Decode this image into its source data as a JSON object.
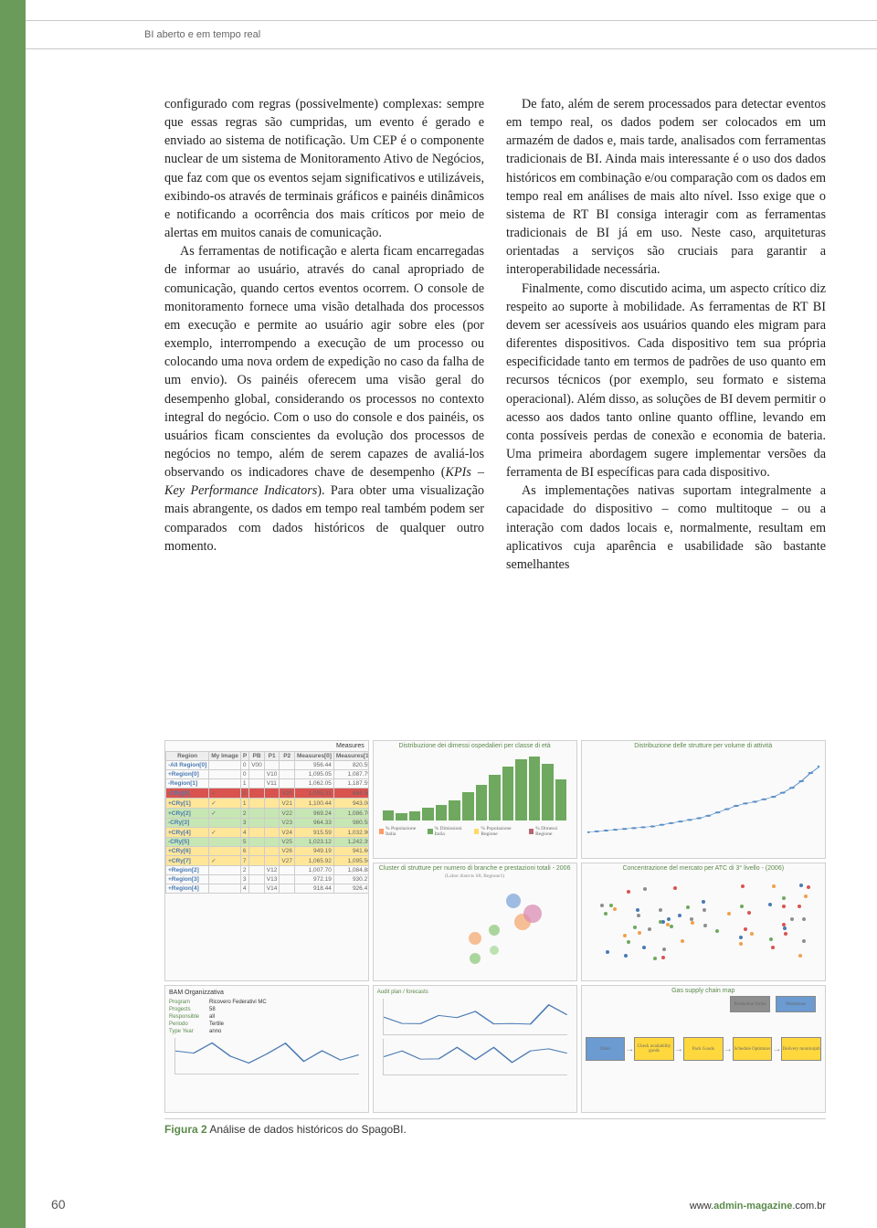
{
  "header": {
    "title": "BI aberto e em tempo real"
  },
  "page_number": "60",
  "footer_url_prefix": "www.",
  "footer_url_bold": "admin-magazine",
  "footer_url_suffix": ".com.br",
  "col1": {
    "p1": "configurado com regras (possivelmente) complexas: sempre que essas regras são cumpridas, um evento é gerado e enviado ao sistema de notificação. Um CEP é o componente nuclear de um sistema de Monitoramento Ativo de Negócios, que faz com que os eventos sejam significativos e utilizáveis, exibindo-os através de terminais gráficos e painéis dinâmicos e notificando a ocorrência dos mais críticos por meio de alertas em muitos canais de comunicação.",
    "p2a": "As ferramentas de notificação e alerta ficam encarregadas de informar ao usuário, através do canal apropriado de comunicação, quando certos eventos ocorrem. O console de monitoramento fornece uma visão detalhada dos processos em execução e permite ao usuário agir sobre eles (por exemplo, interrompendo a execução de um processo ou colocando uma nova ordem de expedição no caso da falha de um envio). Os painéis oferecem uma visão geral do desempenho global, considerando os processos no contexto integral do negócio. Com o uso do console e dos painéis, os usuários ficam conscientes da evolução dos processos de negócios no tempo, além de serem capazes de avaliá-los observando os indicadores chave de desempenho (",
    "p2_italic": "KPIs – Key Performance Indicators",
    "p2b": "). Para obter uma visualização mais abrangente, os dados em tempo real também podem ser comparados com dados históricos de qualquer outro momento."
  },
  "col2": {
    "p1": "De fato, além de serem processados para detectar eventos em tempo real, os dados podem ser colocados em um armazém de dados e, mais tarde, analisados com ferramentas tradicionais de BI. Ainda mais interessante é o uso dos dados históricos em combinação e/ou comparação com os dados em tempo real em análises de mais alto nível. Isso exige que o sistema de RT BI consiga interagir com as ferramentas tradicionais de BI já em uso. Neste caso, arquiteturas orientadas a serviços são cruciais para garantir a interoperabilidade necessária.",
    "p2": "Finalmente, como discutido acima, um aspecto crítico diz respeito ao suporte à mobilidade. As ferramentas de RT BI devem ser acessíveis aos usuários quando eles migram para diferentes dispositivos. Cada dispositivo tem sua própria especificidade tanto em termos de padrões de uso quanto em recursos técnicos (por exemplo, seu formato e sistema operacional). Além disso, as soluções de BI devem permitir o acesso aos dados tanto online quanto offline, levando em conta possíveis perdas de conexão e economia de bateria. Uma primeira abordagem sugere implementar versões da ferramenta de BI específicas para cada dispositivo.",
    "p3": "As implementações nativas suportam integralmente a capacidade do dispositivo – como multitoque – ou a interação com dados locais e, normalmente, resultam em aplicativos cuja aparência e usabilidade são bastante semelhantes"
  },
  "figure": {
    "label": "Figura 2",
    "caption": "Análise de dados históricos do SpagoBI.",
    "panel1": {
      "title": "Distribuzione dei dimessi ospedalieri per classe di età",
      "bars": [
        2.0,
        1.5,
        1.8,
        2.5,
        3.0,
        4.0,
        5.5,
        7.0,
        9.0,
        10.5,
        12.0,
        12.5,
        11.0,
        8.0
      ],
      "bar_color": "#6fa85f",
      "ylim": [
        0,
        12.5
      ],
      "legend": [
        "% Popolazione Italia",
        "% Dimissioni Italia",
        "% Popolazione Regione",
        "% Dimessi Regione"
      ],
      "legend_colors": [
        "#ff9c66",
        "#6fa85f",
        "#ffd966",
        "#b56576"
      ]
    },
    "panel2": {
      "title": "Distribuzione delle strutture per volume di attività",
      "points_y": [
        8,
        9,
        10,
        11,
        12,
        13,
        14,
        15,
        17,
        19,
        21,
        23,
        25,
        28,
        32,
        36,
        40,
        43,
        45,
        48,
        51,
        56,
        62,
        70,
        80,
        88
      ],
      "color": "#5b8fc9"
    },
    "panel3": {
      "title": "Cluster di strutture per numero di branche e prestazioni totali - 2006",
      "subtitle": "(Labor distrcts S8, Regione1)",
      "bubbles": [
        {
          "x": 5,
          "y": 9000,
          "r": 6,
          "c": "#8fc97f"
        },
        {
          "x": 6,
          "y": 10000,
          "r": 5,
          "c": "#a8d99a"
        },
        {
          "x": 5,
          "y": 11500,
          "r": 7,
          "c": "#f4a971"
        },
        {
          "x": 6,
          "y": 12500,
          "r": 6,
          "c": "#8fc97f"
        },
        {
          "x": 7.5,
          "y": 13500,
          "r": 9,
          "c": "#f4a971"
        },
        {
          "x": 8,
          "y": 14500,
          "r": 10,
          "c": "#d98cb3"
        },
        {
          "x": 7,
          "y": 16000,
          "r": 8,
          "c": "#7fa6d9"
        }
      ],
      "xlim": [
        0,
        10
      ],
      "ylim": [
        8000,
        18000
      ]
    },
    "panel4": {
      "title": "Concentrazione del mercato per ATC di 3° livello - (2006)",
      "scatter_colors": [
        "#6fa85f",
        "#f0a04b",
        "#4a7ab3",
        "#d9534f",
        "#8e8e8e"
      ]
    },
    "table": {
      "header_label": "Measures",
      "columns": [
        "Region",
        "My Image",
        "P",
        "PB",
        "P1",
        "P2",
        "Measures[0]",
        "Measures[1]",
        "Measures[2]"
      ],
      "rows": [
        {
          "cells": [
            "-All Region[0]",
            "",
            "0",
            "V00",
            "",
            "",
            "956.44",
            "820.55",
            "903.55"
          ],
          "bg": null
        },
        {
          "cells": [
            "+Region[0]",
            "",
            "0",
            "",
            "V10",
            "",
            "1,095.05",
            "1,087.79",
            "959.23"
          ],
          "bg": null
        },
        {
          "cells": [
            "-Region[1]",
            "",
            "1",
            "",
            "V11",
            "",
            "1,062.05",
            "1,187.59",
            "969.37"
          ],
          "bg": null
        },
        {
          "cells": [
            "-CRy[0]",
            "✓",
            "0",
            "",
            "",
            "V20",
            "1,005.31",
            "694.50",
            "1,565.73"
          ],
          "bg": "#d9534f"
        },
        {
          "cells": [
            "+CRy[1]",
            "✓",
            "1",
            "",
            "",
            "V21",
            "1,100.44",
            "943.00",
            "1,117.62"
          ],
          "bg": "#ffe699"
        },
        {
          "cells": [
            "+CRy[2]",
            "✓",
            "2",
            "",
            "",
            "V22",
            "969.24",
            "1,086.70",
            "1,054.71"
          ],
          "bg": "#c6e6b3"
        },
        {
          "cells": [
            "-CRy[3]",
            "",
            "3",
            "",
            "",
            "V23",
            "964.33",
            "980.58",
            "953.56"
          ],
          "bg": "#c6e6b3"
        },
        {
          "cells": [
            "+CRy[4]",
            "✓",
            "4",
            "",
            "",
            "V24",
            "915.59",
            "1,032.90",
            "876.19"
          ],
          "bg": "#ffe699"
        },
        {
          "cells": [
            "-CRy[5]",
            "",
            "5",
            "",
            "",
            "V25",
            "1,023.12",
            "1,242.39",
            "969.61"
          ],
          "bg": "#c6e6b3"
        },
        {
          "cells": [
            "+CRy[6]",
            "",
            "6",
            "",
            "",
            "V26",
            "949.19",
            "941.60",
            "1,077.46"
          ],
          "bg": "#ffe699"
        },
        {
          "cells": [
            "+CRy[7]",
            "✓",
            "7",
            "",
            "",
            "V27",
            "1,065.92",
            "1,095.56",
            "1,079.36"
          ],
          "bg": "#ffe699"
        },
        {
          "cells": [
            "+Region[2]",
            "",
            "2",
            "",
            "V12",
            "",
            "1,007.70",
            "1,084.88",
            "1,009.71"
          ],
          "bg": null
        },
        {
          "cells": [
            "+Region[3]",
            "",
            "3",
            "",
            "V13",
            "",
            "972.19",
            "930.27",
            "826.24"
          ],
          "bg": null
        },
        {
          "cells": [
            "+Region[4]",
            "",
            "4",
            "",
            "V14",
            "",
            "918.44",
            "926.47",
            "873.20"
          ],
          "bg": null
        }
      ]
    },
    "form": {
      "title": "BAM Organizzativa",
      "fields": [
        {
          "label": "Program",
          "value": "Ricovero Federativi MC"
        },
        {
          "label": "Progects",
          "value": "58"
        },
        {
          "label": "Responsible",
          "value": "all"
        },
        {
          "label": "Periodo",
          "value": "Tertile"
        },
        {
          "label": "Type Year",
          "value": "anno"
        }
      ],
      "line_color": "#4a7ab3"
    },
    "flow": {
      "title": "Gas supply chain map",
      "nodes": [
        {
          "label": "Order",
          "color": "#6b9bd1"
        },
        {
          "label": "Check availability goods",
          "color": "#ffd83d"
        },
        {
          "label": "Pack Goods",
          "color": "#ffd83d"
        },
        {
          "label": "Schedule Optimizer",
          "color": "#ffd83d"
        },
        {
          "label": "Delivery monitorjob",
          "color": "#ffd83d"
        }
      ],
      "top_nodes": [
        {
          "label": "Production forms",
          "color": "#8e8e8e"
        },
        {
          "label": "Warehouse",
          "color": "#6b9bd1"
        }
      ],
      "arrow_color": "#888"
    }
  }
}
